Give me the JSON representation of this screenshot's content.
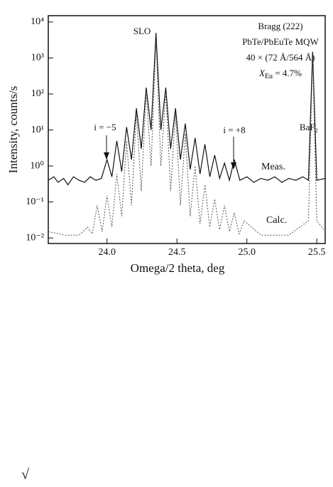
{
  "chart_data": {
    "type": "line",
    "y_label": "Intensity, counts/s",
    "x_label": "Omega/2 theta, deg",
    "log_y": true,
    "xlim": [
      23.58,
      25.56
    ],
    "ylim": [
      0.007,
      15000
    ],
    "xticks": [
      {
        "value": 24,
        "label": "24.0"
      },
      24.5,
      {
        "value": 25,
        "label": "25.0"
      },
      25.5
    ],
    "yticks": [
      {
        "value": 10000,
        "label": "10⁴"
      },
      {
        "value": 1000,
        "label": "10³"
      },
      {
        "value": 100,
        "label": "10²"
      },
      {
        "value": 10,
        "label": "10¹"
      },
      {
        "value": 1,
        "label": "10⁰"
      },
      {
        "value": 0.1,
        "label": "10⁻¹"
      },
      {
        "value": 0.01,
        "label": "10⁻²"
      }
    ],
    "annotations": [
      "SLO",
      "Bragg (222)",
      "PbTe/PbEuTe MQW",
      "40 × (72 Å/564 Å)",
      "X",
      "Eu",
      " = 4.7%",
      "BaF₂",
      "i = −5",
      "i = +8"
    ],
    "series": [
      {
        "name": "Meas.",
        "color": "#111111",
        "dash": false,
        "x": [
          23.58,
          23.62,
          23.65,
          23.69,
          23.72,
          23.76,
          23.8,
          23.84,
          23.88,
          23.92,
          23.96,
          24.0,
          24.035,
          24.07,
          24.105,
          24.14,
          24.175,
          24.21,
          24.245,
          24.28,
          24.315,
          24.35,
          24.385,
          24.42,
          24.455,
          24.49,
          24.525,
          24.56,
          24.595,
          24.63,
          24.665,
          24.7,
          24.735,
          24.77,
          24.805,
          24.84,
          24.875,
          24.91,
          24.95,
          25.0,
          25.05,
          25.1,
          25.15,
          25.2,
          25.25,
          25.3,
          25.35,
          25.4,
          25.44,
          25.47,
          25.5,
          25.56
        ],
        "values": [
          0.4,
          0.5,
          0.35,
          0.45,
          0.3,
          0.5,
          0.4,
          0.35,
          0.5,
          0.4,
          0.45,
          1.5,
          0.5,
          5,
          0.7,
          12,
          1.5,
          40,
          3,
          150,
          10,
          5000,
          10,
          150,
          3,
          40,
          1.5,
          15,
          0.8,
          6,
          0.6,
          4,
          0.5,
          2,
          0.45,
          1.2,
          0.4,
          1.5,
          0.4,
          0.5,
          0.35,
          0.45,
          0.4,
          0.5,
          0.35,
          0.45,
          0.4,
          0.5,
          0.4,
          1500,
          0.4,
          0.45
        ]
      },
      {
        "name": "Calc.",
        "color": "#555555",
        "dash": true,
        "x": [
          23.58,
          23.7,
          23.8,
          23.86,
          23.895,
          23.93,
          23.965,
          24.0,
          24.035,
          24.07,
          24.105,
          24.14,
          24.175,
          24.21,
          24.245,
          24.28,
          24.315,
          24.35,
          24.385,
          24.42,
          24.455,
          24.49,
          24.525,
          24.56,
          24.595,
          24.63,
          24.665,
          24.7,
          24.735,
          24.77,
          24.805,
          24.84,
          24.875,
          24.91,
          24.945,
          24.98,
          25.1,
          25.3,
          25.44,
          25.47,
          25.5,
          25.56
        ],
        "values": [
          0.015,
          0.012,
          0.012,
          0.02,
          0.013,
          0.08,
          0.015,
          0.15,
          0.02,
          0.6,
          0.04,
          5,
          0.08,
          30,
          0.2,
          120,
          1,
          3000,
          1,
          120,
          0.2,
          30,
          0.08,
          8,
          0.04,
          1,
          0.025,
          0.3,
          0.02,
          0.12,
          0.017,
          0.08,
          0.015,
          0.05,
          0.013,
          0.03,
          0.012,
          0.012,
          0.03,
          1000,
          0.03,
          0.015
        ]
      }
    ]
  },
  "footer_symbol": "√"
}
